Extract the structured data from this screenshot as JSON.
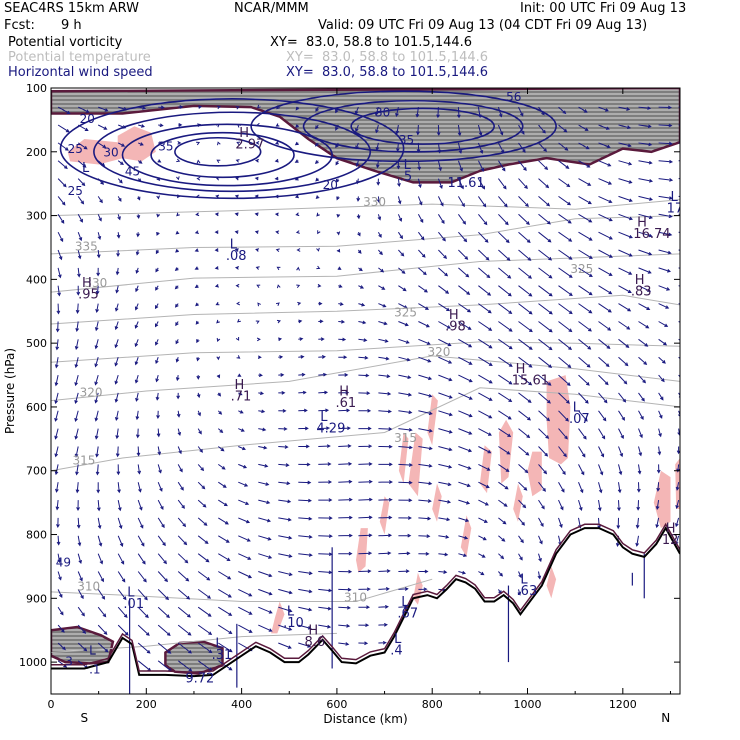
{
  "header": {
    "model": "SEAC4RS 15km ARW",
    "org": "NCAR/MMM",
    "init": "Init: 00 UTC Fri 09 Aug 13",
    "fcst_label": "Fcst:",
    "fcst_value": "9 h",
    "valid": "Valid: 09 UTC Fri 09 Aug 13 (04 CDT Fri 09 Aug 13)"
  },
  "legend": [
    {
      "name": "Potential vorticity",
      "xy": "XY=  83.0, 58.8 to 101.5,144.6",
      "color": "#000000"
    },
    {
      "name": "Potential temperature",
      "xy": "XY=  83.0, 58.8 to 101.5,144.6",
      "color": "#bdbdbd"
    },
    {
      "name": "Horizontal wind speed",
      "xy": "XY=  83.0, 58.8 to 101.5,144.6",
      "color": "#1a1a80"
    }
  ],
  "colors": {
    "terrain": "#000000",
    "wind": "#1a1a80",
    "theta": "#b4b4b4",
    "pv_outline": "#5a1a3c",
    "rh_fill": "#f4b6b6",
    "pv_shade": "#606060"
  },
  "chart_data": {
    "type": "cross-section",
    "title": "",
    "xlabel": "Distance (km)",
    "ylabel": "Pressure (hPa)",
    "xlim": [
      0,
      1320
    ],
    "ylim": [
      1050,
      100
    ],
    "xticks": [
      0,
      200,
      400,
      600,
      800,
      1000,
      1200
    ],
    "yticks": [
      100,
      200,
      300,
      400,
      500,
      600,
      700,
      800,
      900,
      1000
    ],
    "endpoints": {
      "left": "S",
      "right": "N"
    },
    "wind_speed_contours": [
      {
        "value": "20",
        "x": 60,
        "p": 155
      },
      {
        "value": "25",
        "x": 35,
        "p": 202
      },
      {
        "value": "30",
        "x": 110,
        "p": 207
      },
      {
        "value": "35",
        "x": 225,
        "p": 198
      },
      {
        "value": "45",
        "x": 155,
        "p": 237
      },
      {
        "value": "25",
        "x": 35,
        "p": 268
      },
      {
        "value": "30",
        "x": 680,
        "p": 145
      },
      {
        "value": "35",
        "x": 730,
        "p": 188
      },
      {
        "value": "20",
        "x": 570,
        "p": 258
      }
    ],
    "theta_contours": [
      {
        "value": "330",
        "x": 655,
        "p": 285
      },
      {
        "value": "335",
        "x": 50,
        "p": 355
      },
      {
        "value": "330",
        "x": 70,
        "p": 412
      },
      {
        "value": "325",
        "x": 720,
        "p": 458
      },
      {
        "value": "325",
        "x": 1090,
        "p": 390
      },
      {
        "value": "320",
        "x": 790,
        "p": 520
      },
      {
        "value": "320",
        "x": 60,
        "p": 584
      },
      {
        "value": "315",
        "x": 720,
        "p": 655
      },
      {
        "value": "315",
        "x": 45,
        "p": 690
      },
      {
        "value": "310",
        "x": 55,
        "p": 888
      },
      {
        "value": "310",
        "x": 615,
        "p": 905
      }
    ],
    "extrema": [
      {
        "type": "H",
        "value": "2.97",
        "x": 395,
        "p": 195
      },
      {
        "type": "L",
        "value": "",
        "x": 65,
        "p": 250
      },
      {
        "type": "L",
        "value": ".5",
        "x": 740,
        "p": 245
      },
      {
        "type": "",
        "value": "11.61",
        "x": 840,
        "p": 255
      },
      {
        "type": "L",
        "value": ".08",
        "x": 375,
        "p": 370
      },
      {
        "type": "H",
        "value": ".95",
        "x": 65,
        "p": 430
      },
      {
        "type": "H",
        "value": "16.74",
        "x": 1230,
        "p": 335
      },
      {
        "type": "L",
        "value": "17",
        "x": 1300,
        "p": 295
      },
      {
        "type": "H",
        "value": ".83",
        "x": 1225,
        "p": 425
      },
      {
        "type": "H",
        "value": ".98",
        "x": 835,
        "p": 480
      },
      {
        "type": "H",
        "value": "15.61",
        "x": 975,
        "p": 565
      },
      {
        "type": "H",
        "value": ".71",
        "x": 385,
        "p": 590
      },
      {
        "type": "H",
        "value": ".61",
        "x": 605,
        "p": 600
      },
      {
        "type": "L",
        "value": "4.29",
        "x": 565,
        "p": 640
      },
      {
        "type": "L",
        "value": ".07",
        "x": 1095,
        "p": 625
      },
      {
        "type": "H",
        "value": "12",
        "x": 1290,
        "p": 815
      },
      {
        "type": "L",
        "value": ".01",
        "x": 160,
        "p": 915
      },
      {
        "type": "L",
        "value": ".10",
        "x": 495,
        "p": 945
      },
      {
        "type": "H",
        "value": "8.6",
        "x": 540,
        "p": 975
      },
      {
        "type": "L",
        "value": ".67",
        "x": 735,
        "p": 930
      },
      {
        "type": "L",
        "value": ".4",
        "x": 720,
        "p": 988
      },
      {
        "type": "L",
        "value": ".63",
        "x": 985,
        "p": 895
      },
      {
        "type": "L",
        "value": ".31",
        "x": 345,
        "p": 995
      },
      {
        "type": "",
        "value": "9.72",
        "x": 290,
        "p": 1032
      }
    ],
    "other_labels": [
      {
        "value": "56",
        "x": 955,
        "p": 120
      },
      {
        "value": "49",
        "x": 10,
        "p": 850
      },
      {
        "value": "L",
        "x": 80,
        "p": 988
      },
      {
        "value": ".1",
        "x": 80,
        "p": 1018
      },
      {
        "value": "3",
        "x": 30,
        "p": 1005
      }
    ],
    "terrain": [
      [
        0,
        1010
      ],
      [
        70,
        1010
      ],
      [
        120,
        1000
      ],
      [
        150,
        962
      ],
      [
        170,
        972
      ],
      [
        185,
        1020
      ],
      [
        240,
        1020
      ],
      [
        300,
        1022
      ],
      [
        340,
        1020
      ],
      [
        370,
        1005
      ],
      [
        400,
        990
      ],
      [
        430,
        975
      ],
      [
        460,
        985
      ],
      [
        490,
        1000
      ],
      [
        520,
        1000
      ],
      [
        540,
        988
      ],
      [
        570,
        965
      ],
      [
        590,
        982
      ],
      [
        610,
        1000
      ],
      [
        640,
        1002
      ],
      [
        670,
        990
      ],
      [
        700,
        985
      ],
      [
        720,
        960
      ],
      [
        740,
        930
      ],
      [
        760,
        900
      ],
      [
        790,
        895
      ],
      [
        810,
        900
      ],
      [
        830,
        886
      ],
      [
        850,
        870
      ],
      [
        870,
        875
      ],
      [
        890,
        885
      ],
      [
        910,
        905
      ],
      [
        930,
        905
      ],
      [
        950,
        895
      ],
      [
        970,
        908
      ],
      [
        985,
        925
      ],
      [
        1000,
        910
      ],
      [
        1030,
        880
      ],
      [
        1060,
        830
      ],
      [
        1090,
        800
      ],
      [
        1120,
        790
      ],
      [
        1150,
        790
      ],
      [
        1180,
        800
      ],
      [
        1200,
        820
      ],
      [
        1220,
        830
      ],
      [
        1245,
        835
      ],
      [
        1270,
        815
      ],
      [
        1290,
        790
      ],
      [
        1320,
        830
      ]
    ],
    "rh_regions": [
      [
        [
          140,
          175
        ],
        [
          175,
          160
        ],
        [
          210,
          170
        ],
        [
          220,
          200
        ],
        [
          190,
          215
        ],
        [
          150,
          210
        ],
        [
          140,
          195
        ]
      ],
      [
        [
          35,
          200
        ],
        [
          70,
          180
        ],
        [
          140,
          185
        ],
        [
          150,
          210
        ],
        [
          100,
          220
        ],
        [
          40,
          215
        ]
      ],
      [
        [
          470,
          930
        ],
        [
          480,
          905
        ],
        [
          490,
          925
        ],
        [
          475,
          955
        ],
        [
          462,
          955
        ]
      ],
      [
        [
          640,
          840
        ],
        [
          650,
          790
        ],
        [
          665,
          790
        ],
        [
          660,
          850
        ],
        [
          645,
          860
        ]
      ],
      [
        [
          690,
          780
        ],
        [
          700,
          740
        ],
        [
          710,
          750
        ],
        [
          700,
          800
        ]
      ],
      [
        [
          730,
          700
        ],
        [
          740,
          640
        ],
        [
          750,
          650
        ],
        [
          740,
          720
        ]
      ],
      [
        [
          750,
          720
        ],
        [
          765,
          640
        ],
        [
          780,
          650
        ],
        [
          770,
          740
        ]
      ],
      [
        [
          790,
          640
        ],
        [
          800,
          580
        ],
        [
          812,
          590
        ],
        [
          800,
          660
        ]
      ],
      [
        [
          800,
          760
        ],
        [
          810,
          720
        ],
        [
          820,
          740
        ],
        [
          810,
          780
        ]
      ],
      [
        [
          760,
          900
        ],
        [
          770,
          860
        ],
        [
          780,
          880
        ],
        [
          770,
          910
        ]
      ],
      [
        [
          860,
          820
        ],
        [
          872,
          770
        ],
        [
          882,
          790
        ],
        [
          872,
          835
        ]
      ],
      [
        [
          900,
          720
        ],
        [
          910,
          660
        ],
        [
          925,
          670
        ],
        [
          915,
          735
        ]
      ],
      [
        [
          940,
          640
        ],
        [
          955,
          620
        ],
        [
          970,
          640
        ],
        [
          960,
          710
        ],
        [
          945,
          720
        ]
      ],
      [
        [
          970,
          760
        ],
        [
          980,
          720
        ],
        [
          990,
          740
        ],
        [
          980,
          780
        ]
      ],
      [
        [
          1000,
          700
        ],
        [
          1010,
          670
        ],
        [
          1030,
          670
        ],
        [
          1030,
          730
        ],
        [
          1010,
          740
        ]
      ],
      [
        [
          1040,
          560
        ],
        [
          1080,
          550
        ],
        [
          1090,
          600
        ],
        [
          1085,
          680
        ],
        [
          1070,
          690
        ],
        [
          1045,
          680
        ],
        [
          1040,
          620
        ]
      ],
      [
        [
          1040,
          880
        ],
        [
          1050,
          850
        ],
        [
          1060,
          870
        ],
        [
          1050,
          900
        ]
      ],
      [
        [
          1265,
          750
        ],
        [
          1280,
          700
        ],
        [
          1300,
          710
        ],
        [
          1300,
          780
        ],
        [
          1280,
          790
        ]
      ],
      [
        [
          1310,
          690
        ],
        [
          1320,
          680
        ],
        [
          1320,
          760
        ],
        [
          1312,
          760
        ]
      ]
    ],
    "pv_regions": [
      [
        [
          0,
          105
        ],
        [
          1320,
          100
        ],
        [
          1320,
          185
        ],
        [
          1260,
          200
        ],
        [
          1200,
          195
        ],
        [
          1130,
          220
        ],
        [
          1040,
          210
        ],
        [
          960,
          220
        ],
        [
          900,
          230
        ],
        [
          840,
          248
        ],
        [
          760,
          248
        ],
        [
          680,
          230
        ],
        [
          600,
          210
        ],
        [
          540,
          180
        ],
        [
          480,
          145
        ],
        [
          420,
          130
        ],
        [
          300,
          128
        ],
        [
          150,
          140
        ],
        [
          0,
          140
        ]
      ],
      [
        [
          0,
          950
        ],
        [
          55,
          945
        ],
        [
          105,
          958
        ],
        [
          130,
          968
        ],
        [
          120,
          1000
        ],
        [
          80,
          1002
        ],
        [
          30,
          1000
        ],
        [
          0,
          990
        ]
      ],
      [
        [
          240,
          985
        ],
        [
          270,
          970
        ],
        [
          320,
          968
        ],
        [
          360,
          978
        ],
        [
          360,
          1005
        ],
        [
          310,
          1018
        ],
        [
          260,
          1015
        ],
        [
          240,
          1005
        ]
      ]
    ]
  }
}
